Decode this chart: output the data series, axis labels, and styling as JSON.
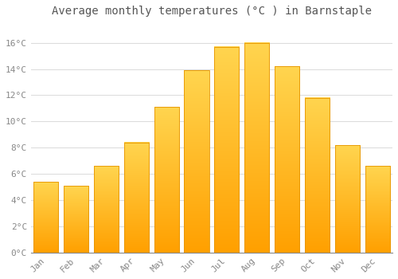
{
  "title": "Average monthly temperatures (°C ) in Barnstaple",
  "months": [
    "Jan",
    "Feb",
    "Mar",
    "Apr",
    "May",
    "Jun",
    "Jul",
    "Aug",
    "Sep",
    "Oct",
    "Nov",
    "Dec"
  ],
  "values": [
    5.4,
    5.1,
    6.6,
    8.4,
    11.1,
    13.9,
    15.7,
    16.0,
    14.2,
    11.8,
    8.2,
    6.6
  ],
  "bar_color_top": "#FFD54F",
  "bar_color_bottom": "#FFA000",
  "background_color": "#FFFFFF",
  "grid_color": "#DDDDDD",
  "tick_label_color": "#888888",
  "title_color": "#555555",
  "ylim": [
    0,
    17.5
  ],
  "yticks": [
    0,
    2,
    4,
    6,
    8,
    10,
    12,
    14,
    16
  ],
  "ytick_labels": [
    "0°C",
    "2°C",
    "4°C",
    "6°C",
    "8°C",
    "10°C",
    "12°C",
    "14°C",
    "16°C"
  ]
}
